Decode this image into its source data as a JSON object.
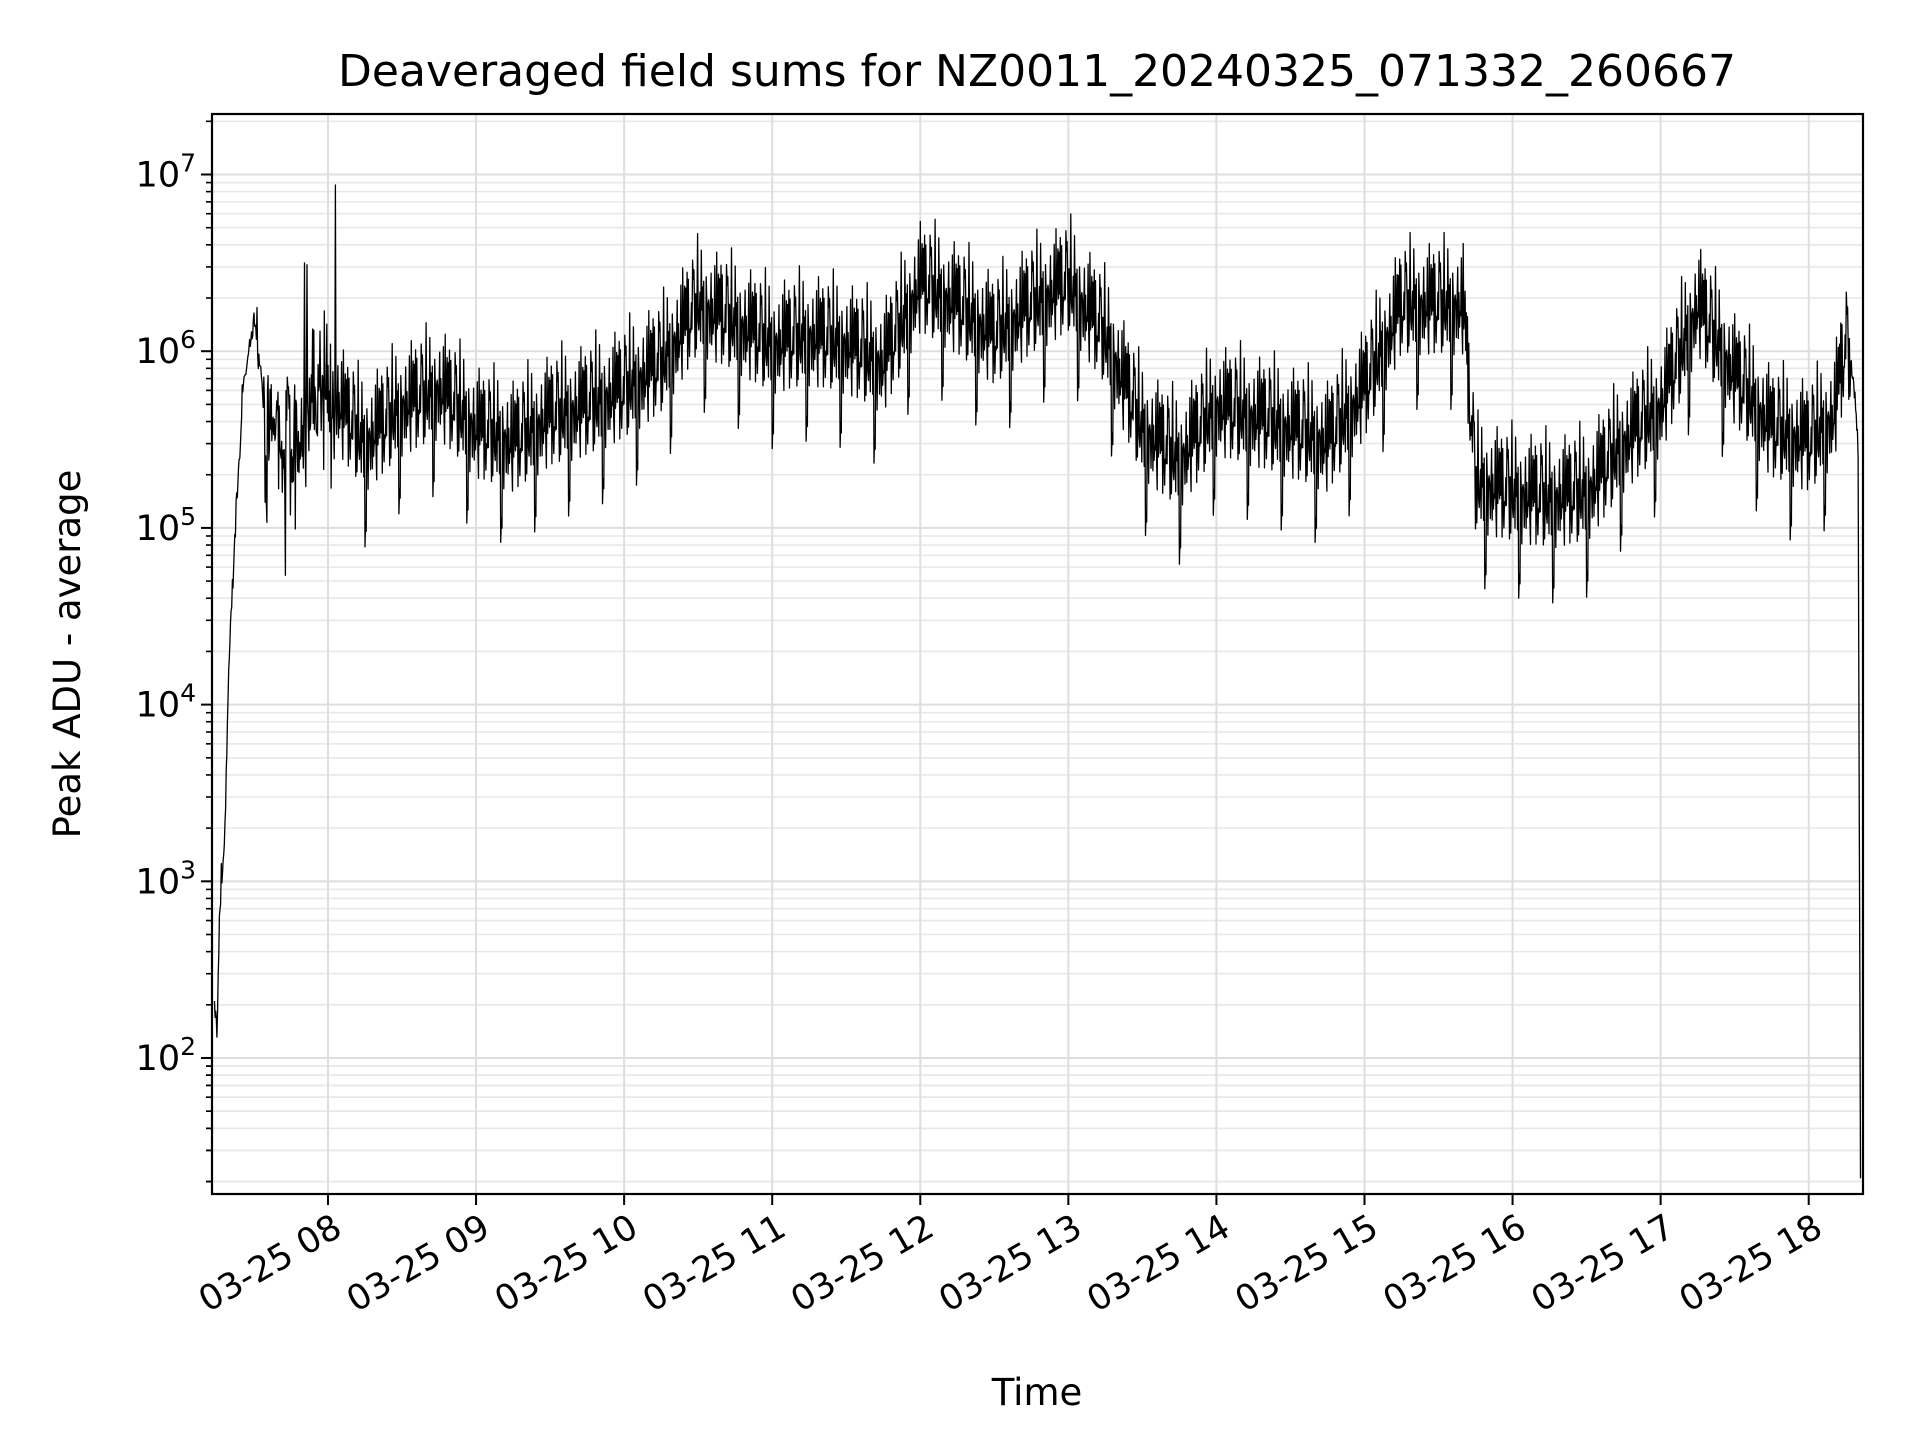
{
  "chart_data": {
    "type": "line",
    "title": "Deaveraged field sums for NZ0011_20240325_071332_260667",
    "xlabel": "Time",
    "ylabel": "Peak ADU - average",
    "y_scale": "log",
    "grid": true,
    "line_color": "#000000",
    "xlim": [
      "03-25 07:13",
      "03-25 18:22"
    ],
    "ylim": [
      17,
      22000000
    ],
    "x_ticks": [
      "03-25 08",
      "03-25 09",
      "03-25 10",
      "03-25 11",
      "03-25 12",
      "03-25 13",
      "03-25 14",
      "03-25 15",
      "03-25 16",
      "03-25 17",
      "03-25 18"
    ],
    "y_ticks": [
      {
        "value": 100,
        "base": "10",
        "exp": "2"
      },
      {
        "value": 1000,
        "base": "10",
        "exp": "3"
      },
      {
        "value": 10000,
        "base": "10",
        "exp": "4"
      },
      {
        "value": 100000,
        "base": "10",
        "exp": "5"
      },
      {
        "value": 1000000,
        "base": "10",
        "exp": "6"
      },
      {
        "value": 10000000,
        "base": "10",
        "exp": "7"
      }
    ],
    "series": [
      {
        "values_note": "approximate trend of peak ADU - average over time",
        "x": [
          "03-25 07:14",
          "03-25 07:15",
          "03-25 07:16",
          "03-25 07:18",
          "03-25 07:20",
          "03-25 07:23",
          "03-25 07:26",
          "03-25 07:30",
          "03-25 07:35",
          "03-25 07:40",
          "03-25 07:50",
          "03-25 08:00",
          "03-25 08:15",
          "03-25 08:30",
          "03-25 08:45",
          "03-25 09:00",
          "03-25 09:15",
          "03-25 09:30",
          "03-25 09:45",
          "03-25 10:00",
          "03-25 10:15",
          "03-25 10:30",
          "03-25 10:45",
          "03-25 11:00",
          "03-25 11:15",
          "03-25 11:30",
          "03-25 11:45",
          "03-25 12:00",
          "03-25 12:15",
          "03-25 12:30",
          "03-25 12:45",
          "03-25 13:00",
          "03-25 13:15",
          "03-25 13:30",
          "03-25 13:45",
          "03-25 14:00",
          "03-25 14:15",
          "03-25 14:30",
          "03-25 14:45",
          "03-25 15:00",
          "03-25 15:15",
          "03-25 15:30",
          "03-25 15:40",
          "03-25 15:45",
          "03-25 16:00",
          "03-25 16:15",
          "03-25 16:30",
          "03-25 16:40",
          "03-25 16:45",
          "03-25 17:00",
          "03-25 17:15",
          "03-25 17:30",
          "03-25 17:45",
          "03-25 18:00",
          "03-25 18:10",
          "03-25 18:15",
          "03-25 18:18",
          "03-25 18:20",
          "03-25 18:21"
        ],
        "y": [
          200,
          150,
          600,
          1500,
          20000,
          150000,
          700000,
          1500000,
          400000,
          300000,
          350000,
          500000,
          250000,
          400000,
          500000,
          300000,
          250000,
          350000,
          400000,
          500000,
          700000,
          1500000,
          1200000,
          900000,
          1000000,
          900000,
          700000,
          2000000,
          1500000,
          1000000,
          1500000,
          2000000,
          1000000,
          300000,
          200000,
          400000,
          350000,
          300000,
          250000,
          500000,
          1500000,
          1500000,
          1500000,
          150000,
          130000,
          120000,
          130000,
          200000,
          250000,
          400000,
          1500000,
          600000,
          300000,
          250000,
          350000,
          900000,
          700000,
          300000,
          20
        ]
      }
    ]
  }
}
